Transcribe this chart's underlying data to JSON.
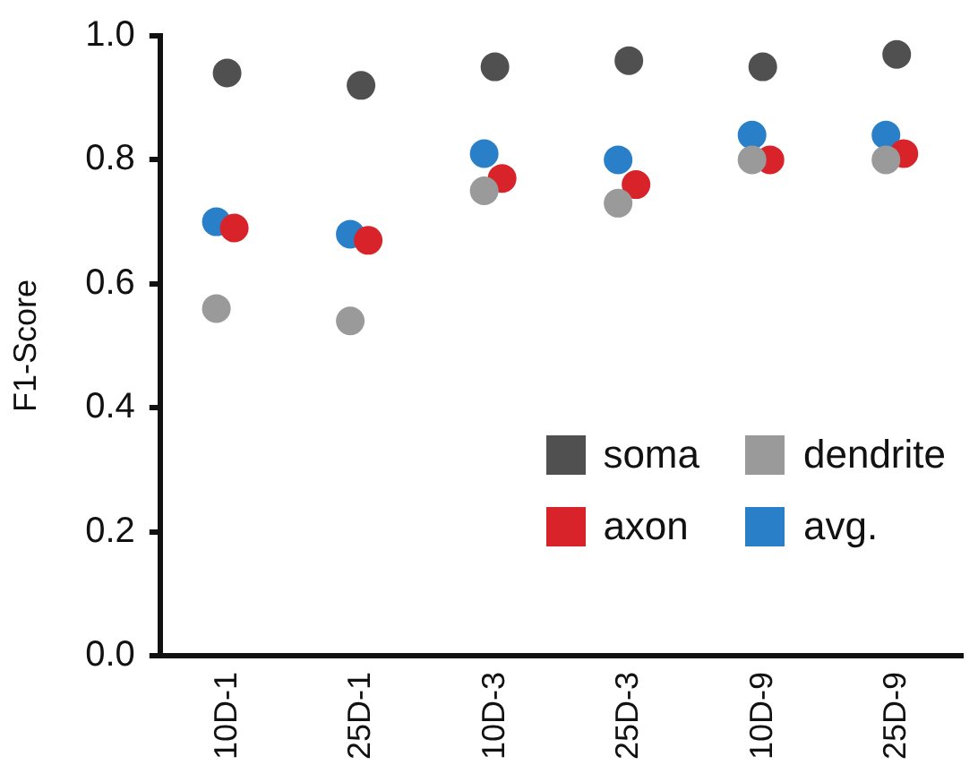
{
  "chart_data": {
    "type": "scatter",
    "ylabel": "F1-Score",
    "categories": [
      "10D-1",
      "25D-1",
      "10D-3",
      "25D-3",
      "10D-9",
      "25D-9"
    ],
    "series": [
      {
        "name": "soma",
        "color": "#505050",
        "values": [
          0.94,
          0.92,
          0.95,
          0.96,
          0.95,
          0.97
        ]
      },
      {
        "name": "dendrite",
        "color": "#9a9a9a",
        "values": [
          0.56,
          0.54,
          0.75,
          0.73,
          0.8,
          0.8
        ]
      },
      {
        "name": "axon",
        "color": "#d9232a",
        "values": [
          0.69,
          0.67,
          0.77,
          0.76,
          0.8,
          0.81
        ]
      },
      {
        "name": "avg.",
        "color": "#2a7fc9",
        "values": [
          0.7,
          0.68,
          0.81,
          0.8,
          0.84,
          0.84
        ]
      }
    ],
    "ylim": [
      0,
      1
    ],
    "yticks": [
      {
        "value": 0,
        "label": "0.0"
      },
      0.2,
      0.4,
      0.6,
      0.8,
      {
        "value": 1,
        "label": "1.0"
      }
    ],
    "marker": "circle",
    "grid": false,
    "legend": "bottom right"
  }
}
